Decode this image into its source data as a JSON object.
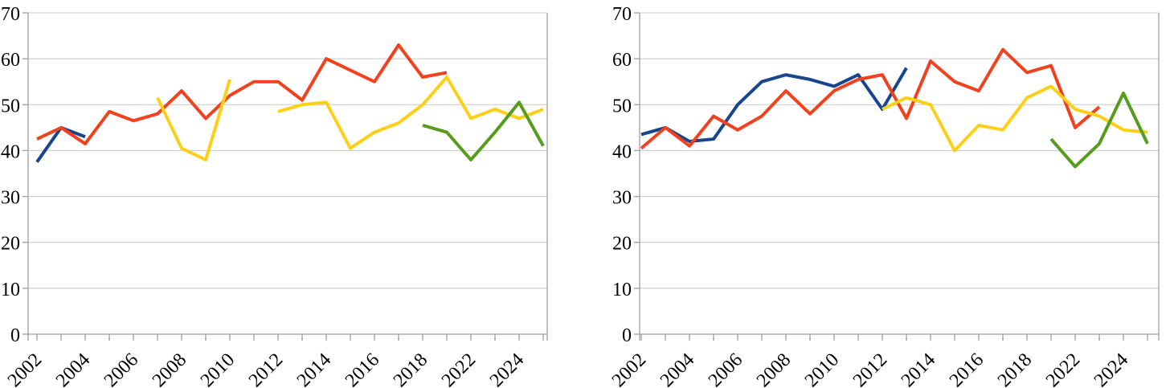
{
  "style": {
    "background": "#ffffff",
    "grid_color": "#c8c8c8",
    "axis_color": "#9e9e9e",
    "label_color": "#000000",
    "series_colors": {
      "blue": "#17468f",
      "red": "#f2411c",
      "yellow": "#fdd017",
      "green": "#569d1d"
    }
  },
  "chart_data": [
    {
      "id": "left",
      "type": "line",
      "title": "",
      "legend": "none",
      "grid": true,
      "ylim": [
        0,
        70
      ],
      "y_ticks": [
        0,
        10,
        20,
        30,
        40,
        50,
        60,
        70
      ],
      "x_label_every": 2,
      "categories": [
        "2002",
        "2003",
        "2004",
        "2005",
        "2006",
        "2007",
        "2008",
        "2009",
        "2010",
        "2011",
        "2012",
        "2013",
        "2014",
        "2015",
        "2016",
        "2017",
        "2018",
        "2019",
        "2022",
        "2023",
        "2024",
        "2025"
      ],
      "series": [
        {
          "name": "blue",
          "values": [
            37.5,
            45,
            43,
            null,
            null,
            null,
            null,
            null,
            null,
            null,
            null,
            null,
            null,
            null,
            null,
            null,
            null,
            null,
            null,
            null,
            null,
            null
          ]
        },
        {
          "name": "red",
          "values": [
            42.5,
            45,
            41.5,
            48.5,
            46.5,
            48,
            53,
            47,
            52,
            55,
            55,
            51,
            60,
            57.5,
            55,
            63,
            56,
            57,
            null,
            null,
            null,
            null
          ]
        },
        {
          "name": "yellow",
          "values": [
            null,
            null,
            null,
            null,
            null,
            51.5,
            40.5,
            38,
            55.5,
            null,
            48.5,
            50,
            50.5,
            40.5,
            44,
            46,
            50,
            56,
            47,
            49,
            47,
            49
          ]
        },
        {
          "name": "green",
          "values": [
            null,
            null,
            null,
            null,
            null,
            null,
            null,
            null,
            null,
            null,
            null,
            null,
            null,
            null,
            null,
            null,
            45.5,
            44,
            38,
            44,
            50.5,
            41
          ]
        }
      ]
    },
    {
      "id": "right",
      "type": "line",
      "title": "",
      "legend": "none",
      "grid": true,
      "ylim": [
        0,
        70
      ],
      "y_ticks": [
        0,
        10,
        20,
        30,
        40,
        50,
        60,
        70
      ],
      "x_label_every": 2,
      "categories": [
        "2002",
        "2003",
        "2004",
        "2005",
        "2006",
        "2007",
        "2008",
        "2009",
        "2010",
        "2011",
        "2012",
        "2013",
        "2014",
        "2015",
        "2016",
        "2017",
        "2018",
        "2019",
        "2022",
        "2023",
        "2024",
        "2025"
      ],
      "series": [
        {
          "name": "blue",
          "values": [
            43.5,
            45,
            42,
            42.5,
            50,
            55,
            56.5,
            55.5,
            54,
            56.5,
            49,
            58,
            null,
            null,
            null,
            null,
            null,
            null,
            null,
            null,
            null,
            null
          ]
        },
        {
          "name": "red",
          "values": [
            40.5,
            45,
            41,
            47.5,
            44.5,
            47.5,
            53,
            48,
            53,
            55.5,
            56.5,
            47,
            59.5,
            55,
            53,
            62,
            57,
            58.5,
            45,
            49.5,
            null,
            null
          ]
        },
        {
          "name": "yellow",
          "values": [
            null,
            null,
            null,
            null,
            null,
            null,
            null,
            null,
            null,
            null,
            49,
            51.5,
            50,
            40,
            45.5,
            44.5,
            51.5,
            54,
            49,
            47.5,
            44.5,
            44
          ]
        },
        {
          "name": "green",
          "values": [
            null,
            null,
            null,
            null,
            null,
            null,
            null,
            null,
            null,
            null,
            null,
            null,
            null,
            null,
            null,
            null,
            null,
            42.5,
            36.5,
            41.5,
            52.5,
            41.5
          ]
        }
      ]
    }
  ]
}
